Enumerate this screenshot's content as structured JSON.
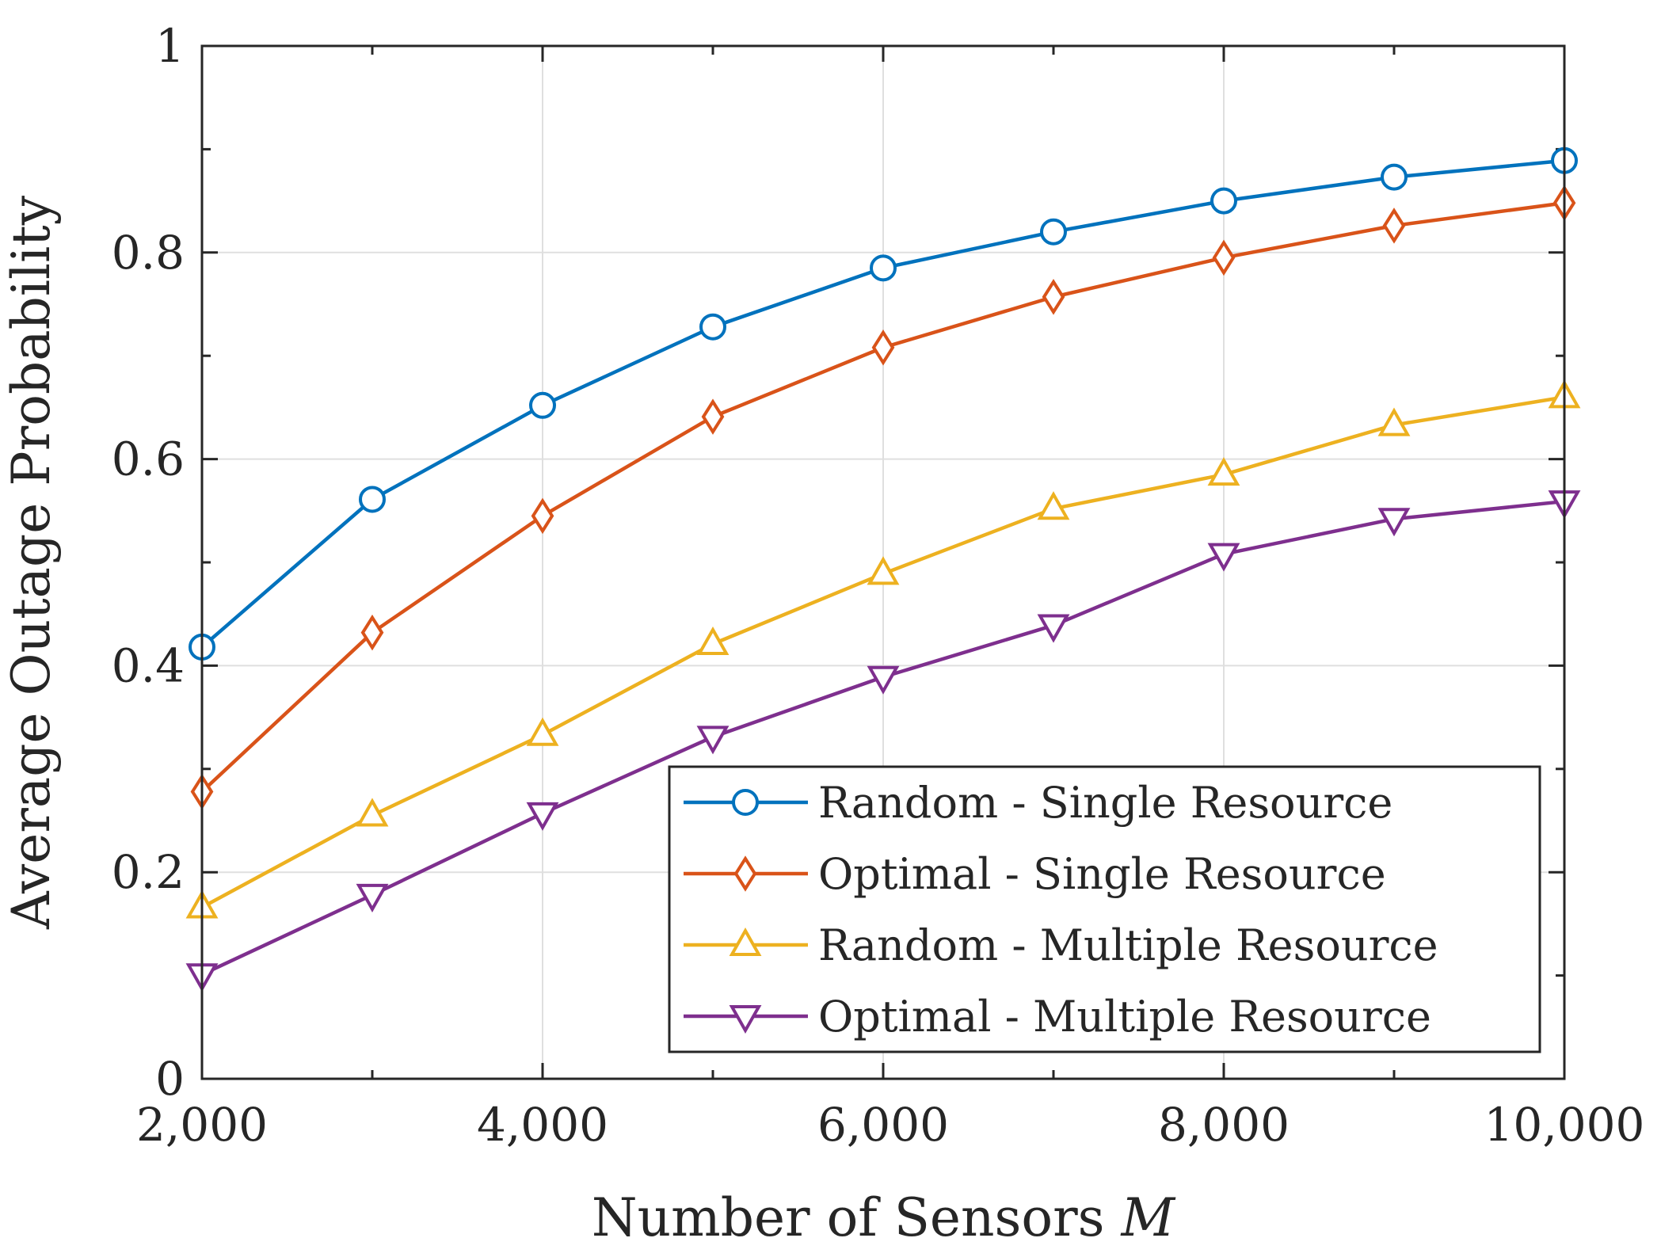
{
  "chart_data": {
    "type": "line",
    "title": "",
    "xlabel": "Number of Sensors",
    "xlabel_var": "M",
    "ylabel": "Average Outage Probability",
    "xlim": [
      2000,
      10000
    ],
    "ylim": [
      0,
      1
    ],
    "xticks": [
      2000,
      4000,
      6000,
      8000,
      10000
    ],
    "xtick_labels": [
      "2,000",
      "4,000",
      "6,000",
      "8,000",
      "10,000"
    ],
    "yticks": [
      0,
      0.2,
      0.4,
      0.6,
      0.8,
      1
    ],
    "ytick_labels": [
      "0",
      "0.2",
      "0.4",
      "0.6",
      "0.8",
      "1"
    ],
    "grid": true,
    "legend_position": "bottom-right",
    "x": [
      2000,
      3000,
      4000,
      5000,
      6000,
      7000,
      8000,
      9000,
      10000
    ],
    "series": [
      {
        "name": "Random - Single Resource",
        "color": "#0072BD",
        "marker": "circle",
        "values": [
          0.418,
          0.561,
          0.652,
          0.728,
          0.785,
          0.82,
          0.85,
          0.873,
          0.889
        ]
      },
      {
        "name": "Optimal - Single Resource",
        "color": "#D95319",
        "marker": "diamond",
        "values": [
          0.278,
          0.432,
          0.545,
          0.641,
          0.708,
          0.757,
          0.795,
          0.826,
          0.848
        ]
      },
      {
        "name": "Random - Multiple Resource",
        "color": "#EDB120",
        "marker": "triangle-up",
        "values": [
          0.166,
          0.255,
          0.333,
          0.421,
          0.489,
          0.552,
          0.585,
          0.633,
          0.66
        ]
      },
      {
        "name": "Optimal - Multiple Resource",
        "color": "#7E2F8E",
        "marker": "triangle-down",
        "values": [
          0.101,
          0.178,
          0.257,
          0.331,
          0.389,
          0.439,
          0.508,
          0.542,
          0.559
        ]
      }
    ]
  }
}
